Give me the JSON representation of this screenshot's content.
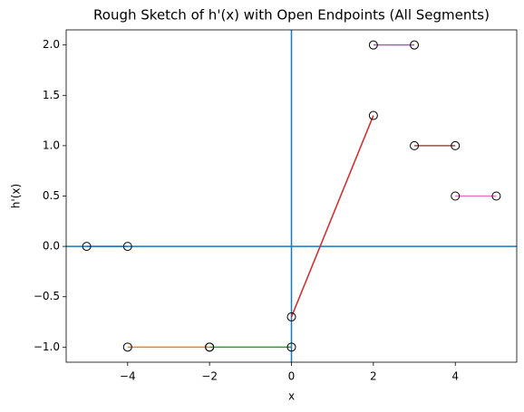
{
  "chart_data": {
    "type": "line",
    "title": "Rough Sketch of h'(x) with Open Endpoints (All Segments)",
    "x_label": "x",
    "y_label": "h'(x)",
    "xlim": [
      -5.5,
      5.5
    ],
    "ylim": [
      -1.15,
      2.15
    ],
    "xticks": [
      {
        "value": -4,
        "label": "−4"
      },
      {
        "value": -2,
        "label": "−2"
      },
      0,
      2,
      4
    ],
    "yticks": [
      {
        "value": -1,
        "label": "−1.0"
      },
      {
        "value": -0.5,
        "label": "−0.5"
      },
      {
        "value": 0,
        "label": "0.0"
      },
      {
        "value": 0.5,
        "label": "0.5"
      },
      {
        "value": 1,
        "label": "1.0"
      },
      {
        "value": 1.5,
        "label": "1.5"
      },
      {
        "value": 2,
        "label": "2.0"
      }
    ],
    "reference_lines": {
      "x": 0,
      "y": 0,
      "color": "#1f77b4"
    },
    "marker": "open-circle",
    "series": [
      {
        "color": "#1f77b4",
        "x": [
          -5,
          -4
        ],
        "values": [
          0,
          0
        ]
      },
      {
        "color": "#ff7f0e",
        "x": [
          -4,
          -2
        ],
        "values": [
          -1,
          -1
        ]
      },
      {
        "color": "#2ca02c",
        "x": [
          -2,
          0
        ],
        "values": [
          -1,
          -1
        ]
      },
      {
        "color": "#d62728",
        "x": [
          0,
          2
        ],
        "values": [
          -0.7,
          1.3
        ]
      },
      {
        "color": "#9467bd",
        "x": [
          2,
          3
        ],
        "values": [
          2,
          2
        ]
      },
      {
        "color": "#8c564b",
        "x": [
          3,
          4
        ],
        "values": [
          1,
          1
        ]
      },
      {
        "color": "#e377c2",
        "x": [
          4,
          5
        ],
        "values": [
          0.5,
          0.5
        ]
      }
    ]
  }
}
